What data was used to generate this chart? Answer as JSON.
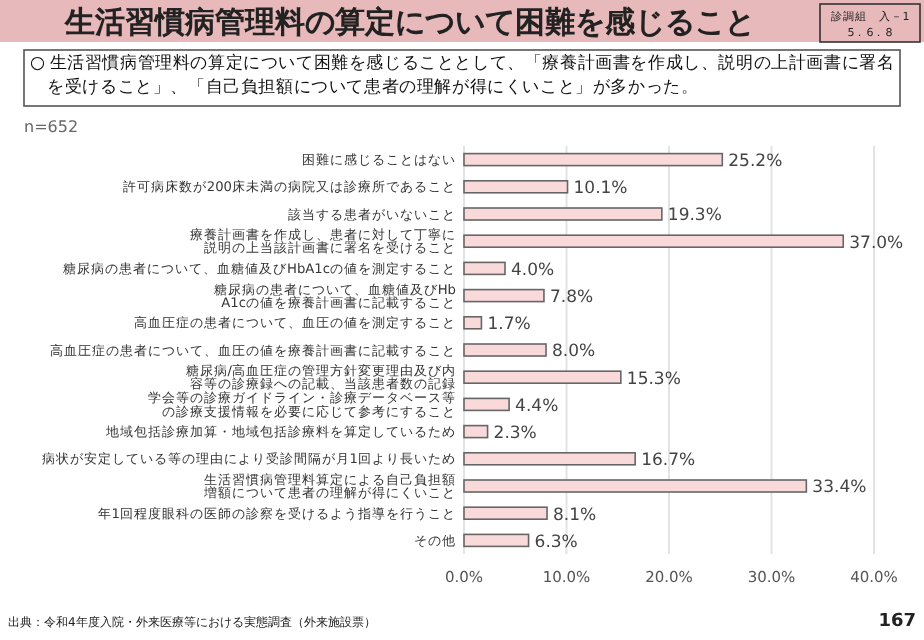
{
  "chart_data": {
    "type": "bar",
    "orientation": "horizontal",
    "title": "生活習慣病管理料の算定について困難を感じること",
    "subtitle": "○ 生活習慣病管理料の算定について困難を感じることとして、「療養計画書を作成し、説明の上計画書に署名を受けること」、「自己負担額について患者の理解が得にくいこと」が多かった。",
    "categories": [
      "困難に感じることはない",
      "許可病床数が200床未満の病院又は診療所であること",
      "該当する患者がいないこと",
      "療養計画書を作成し、患者に対して丁寧に説明の上当該計画書に署名を受けること",
      "糖尿病の患者について、血糖値及びHbA1cの値を測定すること",
      "糖尿病の患者について、血糖値及びHbA1cの値を療養計画書に記載すること",
      "高血圧症の患者について、血圧の値を測定すること",
      "高血圧症の患者について、血圧の値を療養計画書に記載すること",
      "糖尿病/高血圧症の管理方針変更理由及び内容等の診療録への記載、当該患者数の記録",
      "学会等の診療ガイドライン・診療データベース等の診療支援情報を必要に応じて参考にすること",
      "地域包括診療加算・地域包括診療料を算定しているため",
      "病状が安定している等の理由により受診間隔が月1回より長いため",
      "生活習慣病管理料算定による自己負担額増額について患者の理解が得にくいこと",
      "年1回程度眼科の医師の診察を受けるよう指導を行うこと",
      "その他"
    ],
    "values": [
      25.2,
      10.1,
      19.3,
      37.0,
      4.0,
      7.8,
      1.7,
      8.0,
      15.3,
      4.4,
      2.3,
      16.7,
      33.4,
      8.1,
      6.3
    ],
    "value_labels": [
      "25.2%",
      "10.1%",
      "19.3%",
      "37.0%",
      "4.0%",
      "7.8%",
      "1.7%",
      "8.0%",
      "15.3%",
      "4.4%",
      "2.3%",
      "16.7%",
      "33.4%",
      "8.1%",
      "6.3%"
    ],
    "color": "#f9d9d9",
    "xlim": [
      0,
      40
    ],
    "xticks": [
      {
        "value": 0,
        "label": "0.0%"
      },
      {
        "value": 10,
        "label": "10.0%"
      },
      {
        "value": 20,
        "label": "20.0%"
      },
      {
        "value": 30,
        "label": "30.0%"
      },
      {
        "value": 40,
        "label": "40.0%"
      }
    ],
    "grid": "x",
    "annotations": [
      "n=652",
      "診調組　入－1",
      "5．6．8",
      "出典：令和4年度入院・外来医療等における実態調査（外来施設票）",
      "167"
    ]
  }
}
